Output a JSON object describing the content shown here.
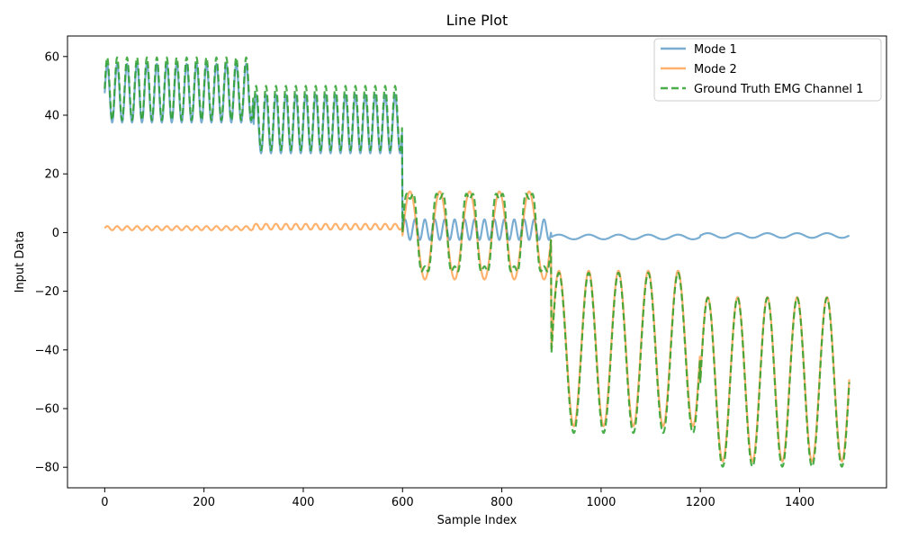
{
  "chart_data": {
    "type": "line",
    "title": "Line Plot",
    "xlabel": "Sample Index",
    "ylabel": "Input Data",
    "xlim": [
      -75,
      1575
    ],
    "ylim": [
      -87,
      67
    ],
    "xticks": [
      0,
      200,
      400,
      600,
      800,
      1000,
      1200,
      1400
    ],
    "yticks": [
      -80,
      -60,
      -40,
      -20,
      0,
      20,
      40,
      60
    ],
    "ytick_labels": [
      "−80",
      "−60",
      "−40",
      "−20",
      "0",
      "20",
      "40",
      "60"
    ],
    "legend_position": "upper right",
    "grid": false,
    "segments": [
      {
        "start": 0,
        "end": 300,
        "mode1": {
          "center": 47.5,
          "amp": 10,
          "period": 20
        },
        "mode2": {
          "center": 1.5,
          "amp": 0.7,
          "period": 20
        }
      },
      {
        "start": 300,
        "end": 600,
        "mode1": {
          "center": 37,
          "amp": 10,
          "period": 20
        },
        "mode2": {
          "center": 2,
          "amp": 1,
          "period": 20
        }
      },
      {
        "start": 600,
        "end": 900,
        "mode1": {
          "center": 1,
          "amp": 3.5,
          "period": 20
        },
        "mode2": {
          "center": -1,
          "amp": 15,
          "period": 60
        }
      },
      {
        "start": 900,
        "end": 1200,
        "mode1": {
          "center": -1.5,
          "amp": 0.8,
          "period": 60
        },
        "mode2": {
          "center": -39.5,
          "amp": 26.5,
          "period": 60
        }
      },
      {
        "start": 1200,
        "end": 1500,
        "mode1": {
          "center": -1,
          "amp": 0.8,
          "period": 60
        },
        "mode2": {
          "center": -50,
          "amp": 28,
          "period": 60
        }
      }
    ],
    "series": [
      {
        "name": "Mode 1",
        "color": "#1f77b4",
        "style": "solid"
      },
      {
        "name": "Mode 2",
        "color": "#ff7f0e",
        "style": "solid"
      },
      {
        "name": "Ground Truth EMG Channel 1",
        "color": "#2ca02c",
        "style": "dashed"
      }
    ]
  }
}
